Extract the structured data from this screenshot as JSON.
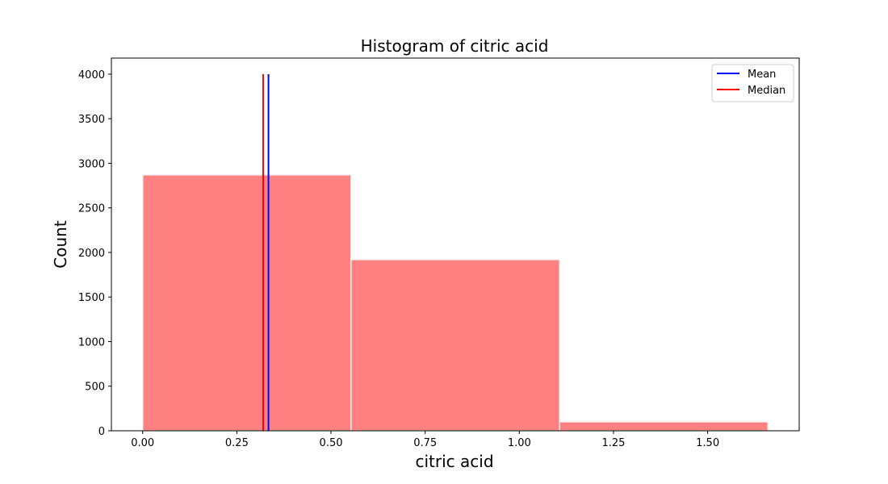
{
  "chart_data": {
    "type": "bar",
    "title": "Histogram of citric acid",
    "xlabel": "citric acid",
    "ylabel": "Count",
    "bins": [
      {
        "start": 0.0,
        "end": 0.553,
        "count": 2870
      },
      {
        "start": 0.553,
        "end": 1.107,
        "count": 1920
      },
      {
        "start": 1.107,
        "end": 1.66,
        "count": 100
      }
    ],
    "xlim": [
      -0.083,
      1.743
    ],
    "ylim": [
      0,
      4180
    ],
    "xticks": [
      0.0,
      0.25,
      0.5,
      0.75,
      1.0,
      1.25,
      1.5
    ],
    "xtick_labels": [
      "0.00",
      "0.25",
      "0.50",
      "0.75",
      "1.00",
      "1.25",
      "1.50"
    ],
    "yticks": [
      0,
      500,
      1000,
      1500,
      2000,
      2500,
      3000,
      3500,
      4000
    ],
    "ytick_labels": [
      "0",
      "500",
      "1000",
      "1500",
      "2000",
      "2500",
      "3000",
      "3500",
      "4000"
    ],
    "reference_lines": [
      {
        "name": "Mean",
        "x": 0.334,
        "y_top": 4000,
        "color": "#0000ff"
      },
      {
        "name": "Median",
        "x": 0.32,
        "y_top": 4000,
        "color": "#ff0000"
      }
    ],
    "bar_color": "#ff8080",
    "bar_edge_color": "#f2f2f2",
    "grid": false,
    "legend_placement": "top-right"
  }
}
